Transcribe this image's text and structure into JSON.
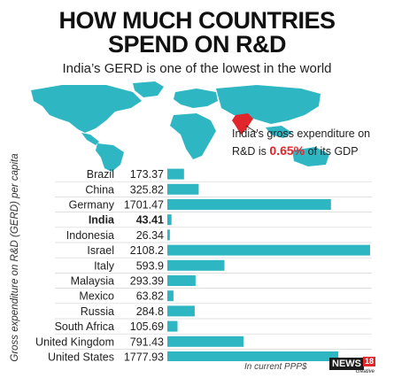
{
  "header": {
    "title_line1": "HOW MUCH COUNTRIES",
    "title_line2": "SPEND ON R&D",
    "subtitle": "India’s GERD is one of the lowest in the world"
  },
  "callout": {
    "line1": "India’s gross expenditure on",
    "line2_prefix": "R&D is",
    "highlight": "0.65%",
    "line2_suffix": "of its GDP"
  },
  "footnote": "In current PPP$",
  "logo": {
    "main": "NEWS",
    "num": "18",
    "sub": "creative"
  },
  "colors": {
    "bar": "#2eb7c3",
    "map_highlight": "#e0262b",
    "map": "#2eb7c3",
    "row_line": "#d6d6d6",
    "highlight_text": "#e0262b"
  },
  "chart_data": {
    "type": "bar",
    "orientation": "horizontal",
    "ylabel": "Gross expenditure on R&D (GERD) per capita",
    "categories": [
      "Brazil",
      "China",
      "Germany",
      "India",
      "Indonesia",
      "Israel",
      "Italy",
      "Malaysia",
      "Mexico",
      "Russia",
      "South Africa",
      "United Kingdom",
      "United States"
    ],
    "values": [
      173.37,
      325.82,
      1701.47,
      43.41,
      26.34,
      2108.2,
      593.9,
      293.39,
      63.82,
      284.8,
      105.69,
      791.43,
      1777.93
    ],
    "value_labels": [
      "173.37",
      "325.82",
      "1701.47",
      "43.41",
      "26.34",
      "2108.2",
      "593.9",
      "293.39",
      "63.82",
      "284.8",
      "105.69",
      "791.43",
      "1777.93"
    ],
    "highlighted_category": "India",
    "grid": false
  }
}
